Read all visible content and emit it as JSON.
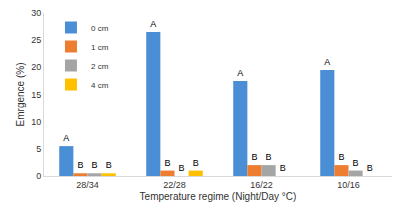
{
  "chart_data": {
    "type": "bar",
    "categories": [
      "28/34",
      "22/28",
      "16/22",
      "10/16"
    ],
    "series": [
      {
        "name": "0 cm",
        "color": "#4a8fd6",
        "values": [
          5.5,
          26.5,
          17.5,
          19.5
        ]
      },
      {
        "name": "1 cm",
        "color": "#ed7d31",
        "values": [
          0.5,
          1,
          2,
          2
        ]
      },
      {
        "name": "2 cm",
        "color": "#a5a5a5",
        "values": [
          0.5,
          0,
          2,
          1
        ]
      },
      {
        "name": "4 cm",
        "color": "#ffc000",
        "values": [
          0.5,
          1,
          0,
          0
        ]
      }
    ],
    "x_label": "Temperature regime (Night/Day °C)",
    "y_label": "Emrgence (%)",
    "ylim": [
      0,
      30
    ],
    "yticks": [
      0,
      5,
      10,
      15,
      20,
      25,
      30
    ],
    "grid": false,
    "legend": "top-left",
    "annotations": [
      {
        "category": "28/34",
        "series": "0 cm",
        "text": "A"
      },
      {
        "category": "28/34",
        "series": "1 cm",
        "text": "B"
      },
      {
        "category": "28/34",
        "series": "2 cm",
        "text": "B"
      },
      {
        "category": "28/34",
        "series": "4 cm",
        "text": "B"
      },
      {
        "category": "22/28",
        "series": "0 cm",
        "text": "A"
      },
      {
        "category": "22/28",
        "series": "1 cm",
        "text": "B"
      },
      {
        "category": "22/28",
        "series": "2 cm",
        "text": "B"
      },
      {
        "category": "22/28",
        "series": "4 cm",
        "text": "B"
      },
      {
        "category": "16/22",
        "series": "0 cm",
        "text": "A"
      },
      {
        "category": "16/22",
        "series": "1 cm",
        "text": "B"
      },
      {
        "category": "16/22",
        "series": "2 cm",
        "text": "B"
      },
      {
        "category": "16/22",
        "series": "4 cm",
        "text": "B"
      },
      {
        "category": "10/16",
        "series": "0 cm",
        "text": "A"
      },
      {
        "category": "10/16",
        "series": "1 cm",
        "text": "B"
      },
      {
        "category": "10/16",
        "series": "2 cm",
        "text": "B"
      },
      {
        "category": "10/16",
        "series": "4 cm",
        "text": "B"
      }
    ]
  }
}
